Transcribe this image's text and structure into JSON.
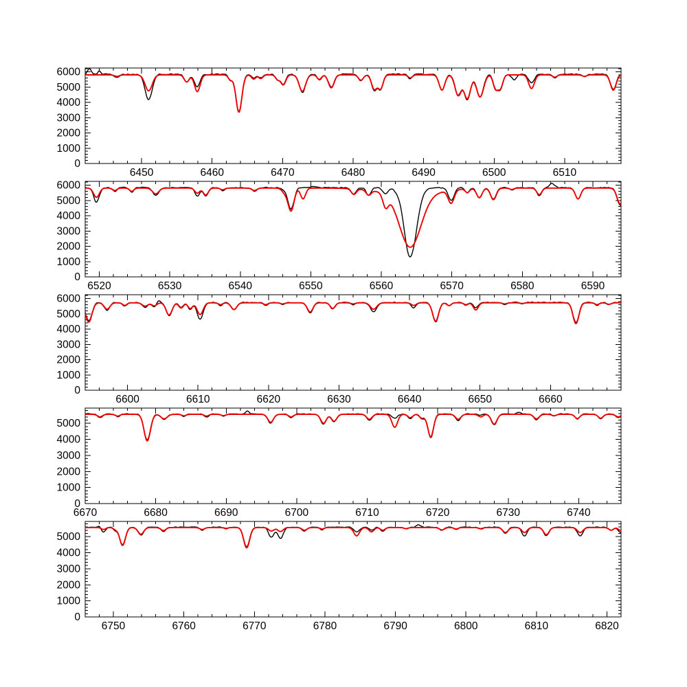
{
  "figure": {
    "title": "",
    "background": "#ffffff",
    "legend": "none",
    "n_panels": 5
  },
  "chart_data": {
    "type": "line",
    "title": "",
    "xlabel": "",
    "ylabel": "",
    "grid": false,
    "legend_position": "none",
    "colors": {
      "observed": "#000000",
      "model": "#ee0000",
      "frame": "#000000"
    },
    "series_roles": [
      {
        "name": "observed",
        "color": "#000000"
      },
      {
        "name": "model",
        "color": "#ee0000"
      }
    ],
    "panels": [
      {
        "id": 1,
        "x_range": [
          6442,
          6518
        ],
        "y_range": [
          0,
          6250
        ],
        "x_major_ticks": [
          6450,
          6460,
          6470,
          6480,
          6490,
          6500,
          6510
        ],
        "x_minor_step": 2,
        "y_major_ticks": [
          0,
          1000,
          2000,
          3000,
          4000,
          5000,
          6000
        ],
        "y_minor_step": 200,
        "continuum": {
          "red": 5800,
          "black": 5840
        },
        "noise": 55,
        "seed": 11,
        "lines": [
          [
            6446.5,
            5700,
            5650,
            0.35
          ],
          [
            6451.0,
            4750,
            4150,
            0.5
          ],
          [
            6456.4,
            5330,
            5300,
            0.35
          ],
          [
            6457.9,
            4700,
            5000,
            0.4
          ],
          [
            6462.6,
            5480,
            5450,
            0.3
          ],
          [
            6463.8,
            3350,
            3400,
            0.42
          ],
          [
            6465.9,
            5520,
            5600,
            0.3
          ],
          [
            6466.9,
            5560,
            5600,
            0.3
          ],
          [
            6469.3,
            5500,
            5480,
            0.3
          ],
          [
            6470.1,
            5150,
            5200,
            0.35
          ],
          [
            6472.8,
            4720,
            4650,
            0.45
          ],
          [
            6475.2,
            5500,
            5450,
            0.3
          ],
          [
            6476.9,
            4950,
            5000,
            0.4
          ],
          [
            6481.1,
            5450,
            5420,
            0.35
          ],
          [
            6483.0,
            4850,
            4800,
            0.38
          ],
          [
            6483.9,
            4900,
            4880,
            0.35
          ],
          [
            6488.1,
            5600,
            5550,
            0.3
          ],
          [
            6492.6,
            4800,
            4780,
            0.4
          ],
          [
            6494.9,
            4450,
            4500,
            0.45
          ],
          [
            6496.2,
            4250,
            4170,
            0.45
          ],
          [
            6498.0,
            4350,
            4380,
            0.5
          ],
          [
            6500.2,
            4900,
            4950,
            0.33
          ],
          [
            6500.9,
            4950,
            4900,
            0.33
          ],
          [
            6502.8,
            5820,
            5500,
            0.35
          ],
          [
            6505.3,
            4900,
            5280,
            0.4
          ],
          [
            6508.6,
            5650,
            5600,
            0.3
          ],
          [
            6512.8,
            5700,
            5680,
            0.3
          ],
          [
            6516.9,
            4800,
            4850,
            0.4
          ]
        ],
        "black_bumps": [
          [
            6442.6,
            380,
            0.25
          ],
          [
            6444.0,
            200,
            0.2
          ]
        ]
      },
      {
        "id": 2,
        "x_range": [
          6518,
          6594
        ],
        "y_range": [
          0,
          6250
        ],
        "x_major_ticks": [
          6520,
          6530,
          6540,
          6550,
          6560,
          6570,
          6580,
          6590
        ],
        "x_minor_step": 2,
        "y_major_ticks": [
          0,
          1000,
          2000,
          3000,
          4000,
          5000,
          6000
        ],
        "y_minor_step": 200,
        "continuum": {
          "red": 5810,
          "black": 5840
        },
        "noise": 48,
        "seed": 22,
        "lines": [
          [
            6519.6,
            5200,
            4900,
            0.4
          ],
          [
            6522.2,
            5650,
            5600,
            0.3
          ],
          [
            6524.6,
            5600,
            5550,
            0.3
          ],
          [
            6528.0,
            5430,
            5350,
            0.45
          ],
          [
            6533.9,
            5480,
            5300,
            0.35
          ],
          [
            6535.1,
            5350,
            5320,
            0.35
          ],
          [
            6537.5,
            5700,
            5650,
            0.3
          ],
          [
            6542.0,
            5650,
            5600,
            0.35
          ],
          [
            6546.3,
            5520,
            5700,
            0.4
          ],
          [
            6547.2,
            4320,
            4450,
            0.42
          ],
          [
            6548.9,
            5100,
            5840,
            0.35
          ],
          [
            6556.1,
            5440,
            5400,
            0.35
          ],
          [
            6558.2,
            5480,
            5350,
            0.35
          ],
          [
            6560.6,
            5000,
            5450,
            0.38
          ],
          [
            6564.1,
            2400,
            1320,
            1.5,
            0.9
          ],
          [
            6564.1,
            5350,
            5830,
            3.8
          ],
          [
            6569.9,
            4950,
            5000,
            0.42
          ],
          [
            6572.2,
            5560,
            5500,
            0.3
          ],
          [
            6573.9,
            5200,
            5150,
            0.38
          ],
          [
            6575.9,
            5050,
            5080,
            0.4
          ],
          [
            6578.5,
            5720,
            5680,
            0.3
          ],
          [
            6582.4,
            5380,
            5300,
            0.35
          ],
          [
            6587.9,
            5100,
            5080,
            0.38
          ],
          [
            6593.9,
            4750,
            4700,
            0.45
          ]
        ],
        "black_bumps": [
          [
            6562.9,
            200,
            0.35
          ],
          [
            6584.2,
            260,
            0.35
          ],
          [
            6550.5,
            100,
            0.3
          ]
        ]
      },
      {
        "id": 3,
        "x_range": [
          6594,
          6670
        ],
        "y_range": [
          0,
          6250
        ],
        "x_major_ticks": [
          6600,
          6610,
          6620,
          6630,
          6640,
          6650,
          6660
        ],
        "x_minor_step": 2,
        "y_major_ticks": [
          0,
          1000,
          2000,
          3000,
          4000,
          5000,
          6000
        ],
        "y_minor_step": 200,
        "continuum": {
          "red": 5720,
          "black": 5740
        },
        "noise": 42,
        "seed": 33,
        "lines": [
          [
            6594.5,
            4450,
            4550,
            0.45
          ],
          [
            6597.1,
            5300,
            5250,
            0.4
          ],
          [
            6599.6,
            5550,
            5500,
            0.3
          ],
          [
            6602.5,
            5500,
            5450,
            0.4
          ],
          [
            6603.8,
            5520,
            5480,
            0.35
          ],
          [
            6605.9,
            4920,
            4880,
            0.42
          ],
          [
            6607.6,
            5380,
            5400,
            0.33
          ],
          [
            6608.9,
            5350,
            5300,
            0.33
          ],
          [
            6610.3,
            4950,
            4620,
            0.42
          ],
          [
            6613.2,
            5600,
            5550,
            0.3
          ],
          [
            6615.1,
            5280,
            5250,
            0.4
          ],
          [
            6619.6,
            5600,
            5560,
            0.3
          ],
          [
            6622.0,
            5650,
            5600,
            0.3
          ],
          [
            6625.9,
            5120,
            5060,
            0.4
          ],
          [
            6629.1,
            5350,
            5320,
            0.35
          ],
          [
            6632.0,
            5650,
            5600,
            0.3
          ],
          [
            6634.9,
            5300,
            5120,
            0.45
          ],
          [
            6640.6,
            5550,
            5400,
            0.35
          ],
          [
            6643.7,
            4520,
            4460,
            0.42
          ],
          [
            6645.6,
            5540,
            5520,
            0.3
          ],
          [
            6648.0,
            5600,
            5570,
            0.3
          ],
          [
            6649.4,
            5250,
            5420,
            0.35
          ],
          [
            6653.5,
            5650,
            5620,
            0.3
          ],
          [
            6656.0,
            5680,
            5650,
            0.3
          ],
          [
            6663.6,
            4350,
            4430,
            0.42
          ],
          [
            6666.6,
            5600,
            5560,
            0.3
          ],
          [
            6668.3,
            5620,
            5600,
            0.3
          ]
        ],
        "black_bumps": [
          [
            6604.4,
            150,
            0.25
          ]
        ]
      },
      {
        "id": 4,
        "x_range": [
          6670,
          6746
        ],
        "y_range": [
          0,
          5950
        ],
        "x_major_ticks": [
          6670,
          6680,
          6690,
          6700,
          6710,
          6720,
          6730,
          6740
        ],
        "x_minor_step": 2,
        "y_major_ticks": [
          0,
          1000,
          2000,
          3000,
          4000,
          5000
        ],
        "y_minor_step": 200,
        "continuum": {
          "red": 5560,
          "black": 5580
        },
        "noise": 38,
        "seed": 44,
        "lines": [
          [
            6672.1,
            5400,
            5350,
            0.35
          ],
          [
            6674.6,
            5450,
            5400,
            0.3
          ],
          [
            6678.8,
            3900,
            3950,
            0.45
          ],
          [
            6681.2,
            5280,
            5250,
            0.45
          ],
          [
            6684.0,
            5470,
            5430,
            0.3
          ],
          [
            6687.2,
            5450,
            5400,
            0.3
          ],
          [
            6689.6,
            5480,
            5450,
            0.3
          ],
          [
            6696.3,
            5060,
            5020,
            0.4
          ],
          [
            6699.2,
            5400,
            5350,
            0.33
          ],
          [
            6703.8,
            5000,
            4960,
            0.4
          ],
          [
            6705.3,
            5130,
            5100,
            0.38
          ],
          [
            6710.3,
            5250,
            5200,
            0.38
          ],
          [
            6713.9,
            4750,
            5320,
            0.4
          ],
          [
            6716.1,
            5350,
            5300,
            0.33
          ],
          [
            6717.8,
            5280,
            5320,
            0.33
          ],
          [
            6719.0,
            4150,
            4100,
            0.4
          ],
          [
            6722.9,
            5250,
            5180,
            0.38
          ],
          [
            6726.1,
            5400,
            5520,
            0.33
          ],
          [
            6728.0,
            4950,
            4900,
            0.4
          ],
          [
            6734.0,
            5280,
            5230,
            0.38
          ],
          [
            6736.5,
            5470,
            5450,
            0.3
          ],
          [
            6739.8,
            5300,
            5260,
            0.35
          ],
          [
            6743.1,
            5320,
            5300,
            0.35
          ],
          [
            6745.6,
            5400,
            5350,
            0.35
          ]
        ],
        "black_bumps": [
          [
            6693.0,
            180,
            0.25
          ],
          [
            6731.5,
            120,
            0.3
          ]
        ]
      },
      {
        "id": 5,
        "x_range": [
          6746,
          6822
        ],
        "y_range": [
          0,
          5950
        ],
        "x_major_ticks": [
          6750,
          6760,
          6770,
          6780,
          6790,
          6800,
          6810,
          6820
        ],
        "x_minor_step": 2,
        "y_major_ticks": [
          0,
          1000,
          2000,
          3000,
          4000,
          5000
        ],
        "y_minor_step": 200,
        "continuum": {
          "red": 5570,
          "black": 5590
        },
        "noise": 38,
        "seed": 55,
        "lines": [
          [
            6748.6,
            5450,
            5280,
            0.3
          ],
          [
            6750.3,
            5450,
            5400,
            0.3
          ],
          [
            6751.3,
            4450,
            4480,
            0.4
          ],
          [
            6753.9,
            5150,
            5100,
            0.4
          ],
          [
            6757.1,
            5380,
            5340,
            0.35
          ],
          [
            6762.6,
            5450,
            5400,
            0.35
          ],
          [
            6766.0,
            5520,
            5500,
            0.3
          ],
          [
            6768.9,
            4300,
            4370,
            0.42
          ],
          [
            6772.4,
            5350,
            4960,
            0.38
          ],
          [
            6773.7,
            5320,
            4900,
            0.38
          ],
          [
            6777.1,
            5400,
            5350,
            0.35
          ],
          [
            6779.6,
            5480,
            5450,
            0.3
          ],
          [
            6784.5,
            5050,
            5300,
            0.4
          ],
          [
            6786.6,
            5300,
            5420,
            0.35
          ],
          [
            6788.2,
            5400,
            5350,
            0.33
          ],
          [
            6791.5,
            5500,
            5480,
            0.3
          ],
          [
            6796.6,
            5420,
            5400,
            0.35
          ],
          [
            6798.6,
            5480,
            5450,
            0.3
          ],
          [
            6802.1,
            5500,
            5460,
            0.3
          ],
          [
            6805.6,
            5260,
            5220,
            0.38
          ],
          [
            6808.3,
            5260,
            5050,
            0.38
          ],
          [
            6811.4,
            5120,
            5050,
            0.38
          ],
          [
            6816.2,
            5260,
            5060,
            0.4
          ],
          [
            6820.6,
            5400,
            5380,
            0.33
          ],
          [
            6821.9,
            5400,
            5250,
            0.3
          ]
        ],
        "black_bumps": [
          [
            6793.3,
            150,
            0.3
          ],
          [
            6748.0,
            100,
            0.2
          ]
        ]
      }
    ]
  }
}
